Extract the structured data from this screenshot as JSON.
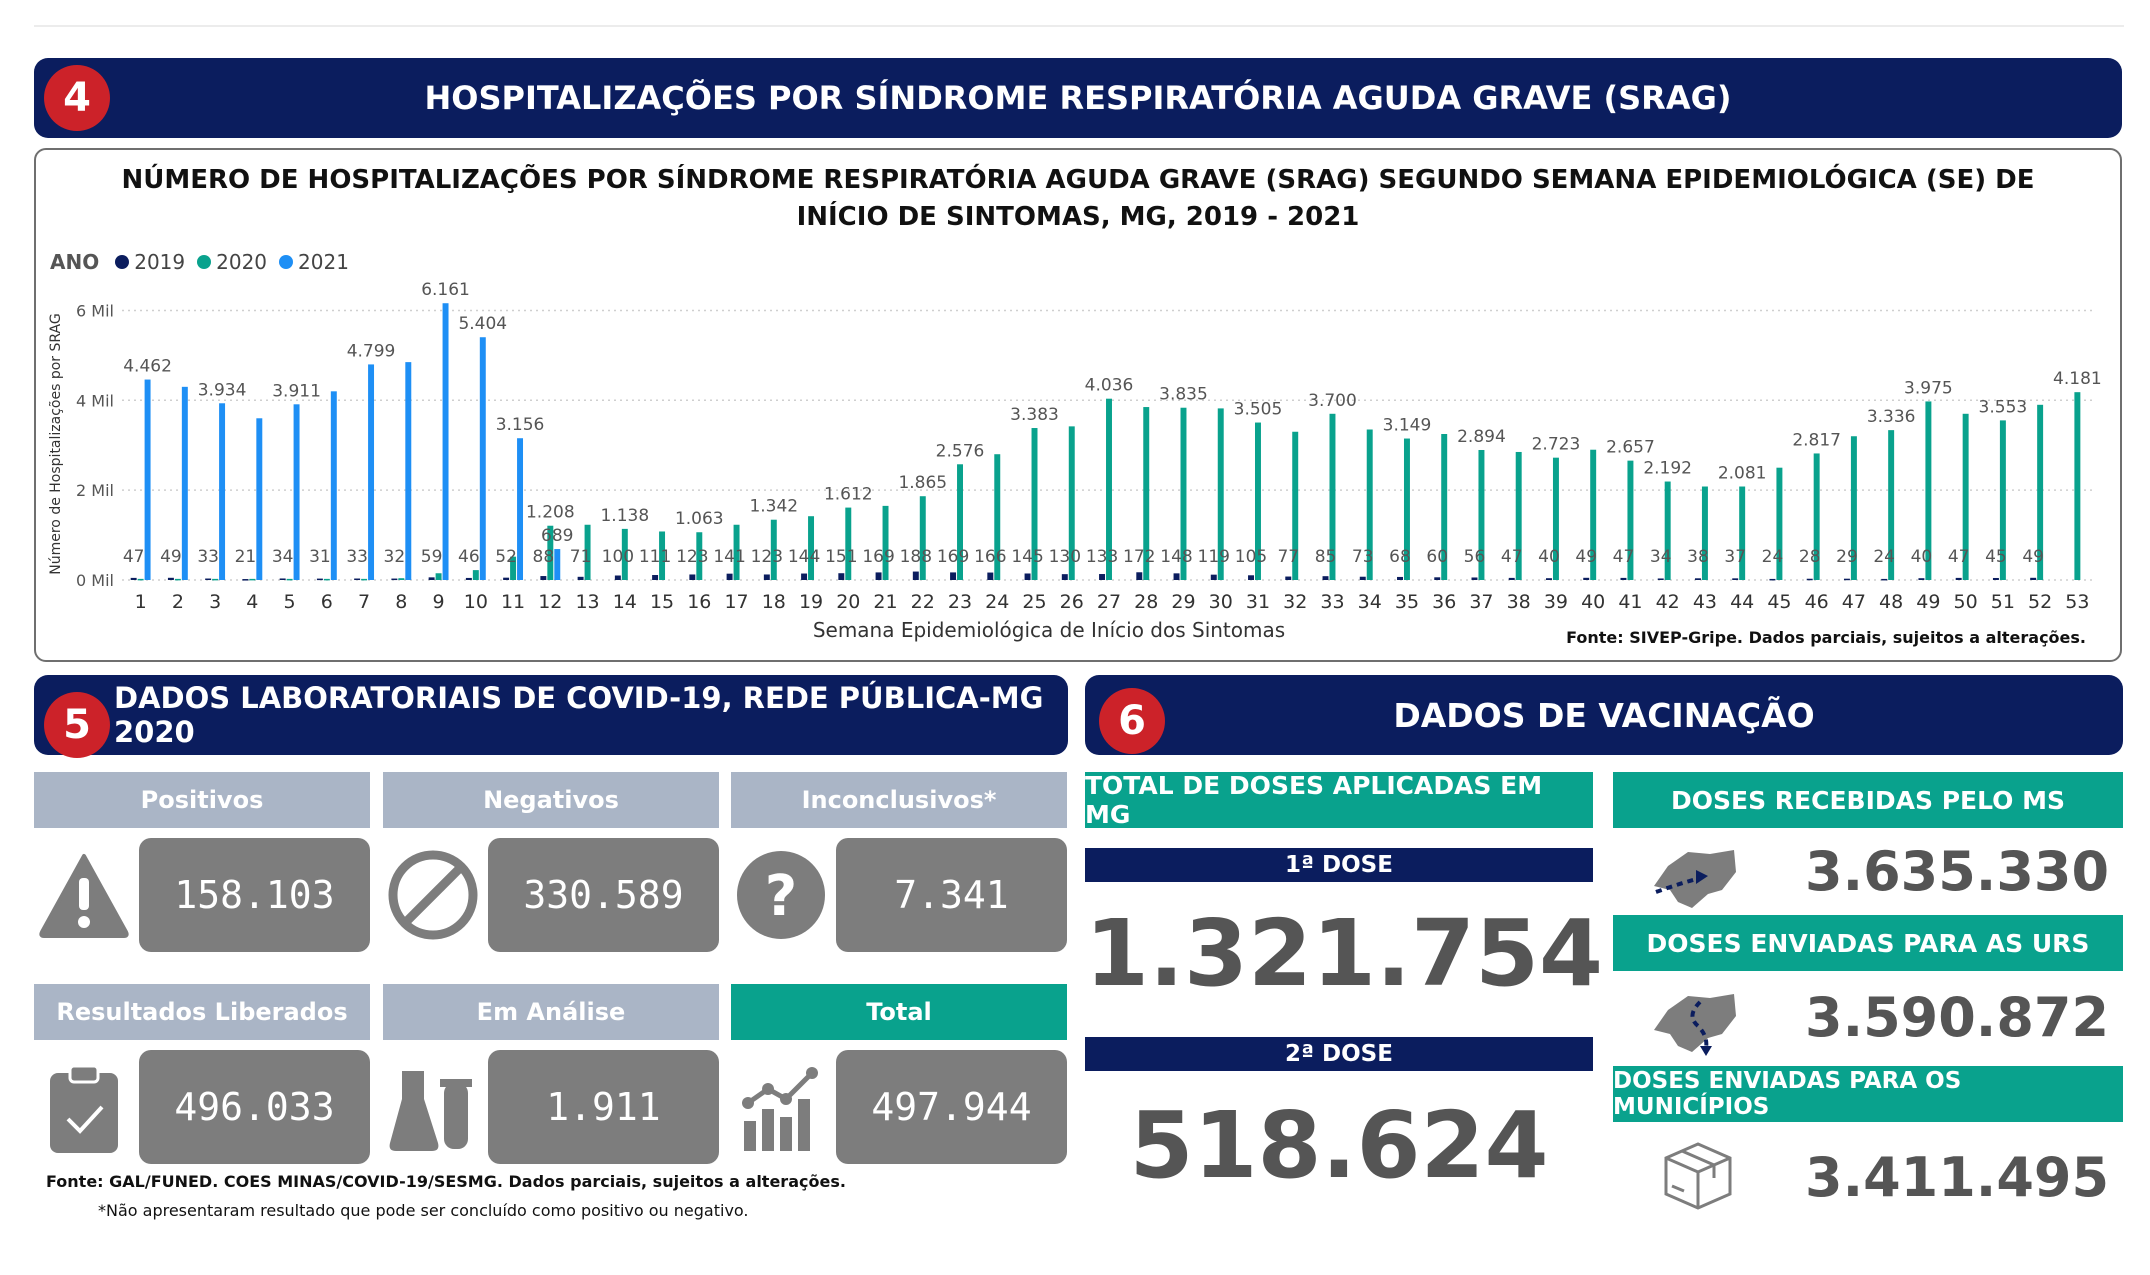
{
  "section4": {
    "badge": "4",
    "title": "HOSPITALIZAÇÕES POR SÍNDROME RESPIRATÓRIA AGUDA GRAVE (SRAG)"
  },
  "chart_data": {
    "type": "bar",
    "title": "NÚMERO DE HOSPITALIZAÇÕES POR SÍNDROME RESPIRATÓRIA AGUDA GRAVE (SRAG) SEGUNDO SEMANA EPIDEMIOLÓGICA (SE) DE INÍCIO DE SINTOMAS, MG, 2019 - 2021",
    "legend_title": "ANO",
    "legend_position": "top-left",
    "xlabel": "Semana Epidemiológica de Início dos Sintomas",
    "ylabel": "Número de Hospitalizações por SRAG",
    "ylim": [
      0,
      6500
    ],
    "yticks": [
      0,
      2000,
      4000,
      6000
    ],
    "ytick_labels": [
      "0 Mil",
      "2 Mil",
      "4 Mil",
      "6 Mil"
    ],
    "grid": true,
    "categories": [
      "1",
      "2",
      "3",
      "4",
      "5",
      "6",
      "7",
      "8",
      "9",
      "10",
      "11",
      "12",
      "13",
      "14",
      "15",
      "16",
      "17",
      "18",
      "19",
      "20",
      "21",
      "22",
      "23",
      "24",
      "25",
      "26",
      "27",
      "28",
      "29",
      "30",
      "31",
      "32",
      "33",
      "34",
      "35",
      "36",
      "37",
      "38",
      "39",
      "40",
      "41",
      "42",
      "43",
      "44",
      "45",
      "46",
      "47",
      "48",
      "49",
      "50",
      "51",
      "52",
      "53"
    ],
    "series": [
      {
        "name": "2019",
        "color": "#0b1d5e",
        "values": [
          47,
          49,
          33,
          21,
          34,
          31,
          33,
          32,
          59,
          46,
          52,
          88,
          71,
          100,
          111,
          123,
          141,
          123,
          144,
          151,
          169,
          188,
          169,
          166,
          145,
          130,
          133,
          172,
          148,
          119,
          105,
          77,
          85,
          73,
          68,
          60,
          56,
          47,
          40,
          49,
          47,
          34,
          38,
          37,
          24,
          28,
          29,
          24,
          40,
          47,
          45,
          49,
          null
        ]
      },
      {
        "name": "2020",
        "color": "#09a28d",
        "values": [
          25,
          25,
          25,
          25,
          25,
          25,
          25,
          40,
          150,
          220,
          520,
          1208,
          1230,
          1138,
          1080,
          1063,
          1230,
          1342,
          1420,
          1612,
          1650,
          1865,
          2576,
          2800,
          3383,
          3420,
          4036,
          3850,
          3835,
          3820,
          3505,
          3300,
          3700,
          3350,
          3149,
          3250,
          2894,
          2850,
          2723,
          2900,
          2657,
          2192,
          2081,
          2081,
          2500,
          2817,
          3200,
          3336,
          3975,
          3700,
          3553,
          3900,
          4181
        ]
      },
      {
        "name": "2021",
        "color": "#1e8ff5",
        "values": [
          4462,
          4300,
          3934,
          3600,
          3911,
          4200,
          4799,
          4850,
          6161,
          5404,
          3156,
          689,
          null,
          null,
          null,
          null,
          null,
          null,
          null,
          null,
          null,
          null,
          null,
          null,
          null,
          null,
          null,
          null,
          null,
          null,
          null,
          null,
          null,
          null,
          null,
          null,
          null,
          null,
          null,
          null,
          null,
          null,
          null,
          null,
          null,
          null,
          null,
          null,
          null,
          null,
          null,
          null,
          null
        ]
      }
    ],
    "data_labels": {
      "2019": [
        {
          "week": 1,
          "text": "47"
        },
        {
          "week": 2,
          "text": "49"
        },
        {
          "week": 3,
          "text": "33"
        },
        {
          "week": 4,
          "text": "21"
        },
        {
          "week": 5,
          "text": "34"
        },
        {
          "week": 6,
          "text": "31"
        },
        {
          "week": 7,
          "text": "33"
        },
        {
          "week": 8,
          "text": "32"
        },
        {
          "week": 9,
          "text": "59"
        },
        {
          "week": 10,
          "text": "46"
        },
        {
          "week": 11,
          "text": "52"
        },
        {
          "week": 12,
          "text": "88"
        },
        {
          "week": 13,
          "text": "71"
        },
        {
          "week": 14,
          "text": "100"
        },
        {
          "week": 15,
          "text": "111"
        },
        {
          "week": 16,
          "text": "123"
        },
        {
          "week": 17,
          "text": "141"
        },
        {
          "week": 18,
          "text": "123"
        },
        {
          "week": 19,
          "text": "144"
        },
        {
          "week": 20,
          "text": "151"
        },
        {
          "week": 21,
          "text": "169"
        },
        {
          "week": 22,
          "text": "188"
        },
        {
          "week": 23,
          "text": "169"
        },
        {
          "week": 24,
          "text": "166"
        },
        {
          "week": 25,
          "text": "145"
        },
        {
          "week": 26,
          "text": "130"
        },
        {
          "week": 27,
          "text": "133"
        },
        {
          "week": 28,
          "text": "172"
        },
        {
          "week": 29,
          "text": "148"
        },
        {
          "week": 30,
          "text": "119"
        },
        {
          "week": 31,
          "text": "105"
        },
        {
          "week": 32,
          "text": "77"
        },
        {
          "week": 33,
          "text": "85"
        },
        {
          "week": 34,
          "text": "73"
        },
        {
          "week": 35,
          "text": "68"
        },
        {
          "week": 36,
          "text": "60"
        },
        {
          "week": 37,
          "text": "56"
        },
        {
          "week": 38,
          "text": "47"
        },
        {
          "week": 39,
          "text": "40"
        },
        {
          "week": 40,
          "text": "49"
        },
        {
          "week": 41,
          "text": "47"
        },
        {
          "week": 42,
          "text": "34"
        },
        {
          "week": 43,
          "text": "38"
        },
        {
          "week": 44,
          "text": "37"
        },
        {
          "week": 45,
          "text": "24"
        },
        {
          "week": 46,
          "text": "28"
        },
        {
          "week": 47,
          "text": "29"
        },
        {
          "week": 48,
          "text": "24"
        },
        {
          "week": 49,
          "text": "40"
        },
        {
          "week": 50,
          "text": "47"
        },
        {
          "week": 51,
          "text": "45"
        },
        {
          "week": 52,
          "text": "49"
        }
      ],
      "2020": [
        {
          "week": 12,
          "text": "1.208"
        },
        {
          "week": 14,
          "text": "1.138"
        },
        {
          "week": 16,
          "text": "1.063"
        },
        {
          "week": 18,
          "text": "1.342"
        },
        {
          "week": 20,
          "text": "1.612"
        },
        {
          "week": 22,
          "text": "1.865"
        },
        {
          "week": 23,
          "text": "2.576"
        },
        {
          "week": 25,
          "text": "3.383"
        },
        {
          "week": 27,
          "text": "4.036"
        },
        {
          "week": 29,
          "text": "3.835"
        },
        {
          "week": 31,
          "text": "3.505"
        },
        {
          "week": 33,
          "text": "3.700"
        },
        {
          "week": 35,
          "text": "3.149"
        },
        {
          "week": 37,
          "text": "2.894"
        },
        {
          "week": 39,
          "text": "2.723"
        },
        {
          "week": 41,
          "text": "2.657"
        },
        {
          "week": 42,
          "text": "2.192"
        },
        {
          "week": 44,
          "text": "2.081"
        },
        {
          "week": 46,
          "text": "2.817"
        },
        {
          "week": 48,
          "text": "3.336"
        },
        {
          "week": 49,
          "text": "3.975"
        },
        {
          "week": 51,
          "text": "3.553"
        },
        {
          "week": 53,
          "text": "4.181"
        }
      ],
      "2021": [
        {
          "week": 1,
          "text": "4.462"
        },
        {
          "week": 3,
          "text": "3.934"
        },
        {
          "week": 5,
          "text": "3.911"
        },
        {
          "week": 7,
          "text": "4.799"
        },
        {
          "week": 9,
          "text": "6.161"
        },
        {
          "week": 10,
          "text": "5.404"
        },
        {
          "week": 11,
          "text": "3.156"
        },
        {
          "week": 12,
          "text": "689"
        }
      ]
    },
    "source": "Fonte: SIVEP-Gripe. Dados parciais, sujeitos a alterações."
  },
  "section5": {
    "badge": "5",
    "title": "DADOS LABORATORIAIS DE COVID-19, REDE PÚBLICA-MG 2020",
    "cards": [
      {
        "label": "Positivos",
        "value": "158.103",
        "icon": "warning-icon"
      },
      {
        "label": "Negativos",
        "value": "330.589",
        "icon": "prohibited-icon"
      },
      {
        "label": "Inconclusivos*",
        "value": "7.341",
        "icon": "question-icon"
      },
      {
        "label": "Resultados Liberados",
        "value": "496.033",
        "icon": "clipboard-check-icon"
      },
      {
        "label": "Em Análise",
        "value": "1.911",
        "icon": "lab-flask-icon"
      },
      {
        "label": "Total",
        "value": "497.944",
        "icon": "growth-chart-icon"
      }
    ],
    "source": "Fonte: GAL/FUNED. COES MINAS/COVID-19/SESMG. Dados parciais, sujeitos a alterações.",
    "note": "*Não apresentaram resultado que pode ser concluído como positivo ou negativo."
  },
  "section6": {
    "badge": "6",
    "title": "DADOS DE VACINAÇÃO",
    "total_header": "TOTAL DE DOSES APLICADAS EM MG",
    "dose1_label": "1ª DOSE",
    "dose1_value": "1.321.754",
    "dose2_label": "2ª DOSE",
    "dose2_value": "518.624",
    "received_header": "DOSES RECEBIDAS PELO MS",
    "received_value": "3.635.330",
    "urs_header": "DOSES ENVIADAS PARA AS URS",
    "urs_value": "3.590.872",
    "municipios_header": "DOSES ENVIADAS PARA OS MUNICÍPIOS",
    "municipios_value": "3.411.495"
  }
}
